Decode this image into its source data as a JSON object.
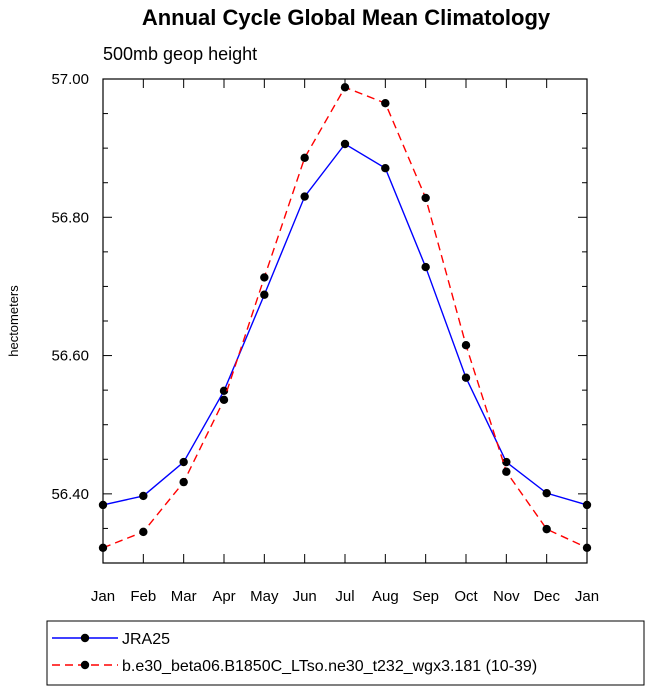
{
  "chart_data": {
    "type": "line",
    "title": "Annual Cycle Global Mean Climatology",
    "subtitle": "500mb geop height",
    "xlabel": "",
    "ylabel": "hectometers",
    "categories": [
      "Jan",
      "Feb",
      "Mar",
      "Apr",
      "May",
      "Jun",
      "Jul",
      "Aug",
      "Sep",
      "Oct",
      "Nov",
      "Dec",
      "Jan"
    ],
    "ylim": [
      56.3,
      57.0
    ],
    "yticks": [
      "56.40",
      "56.60",
      "56.80",
      "57.00"
    ],
    "series": [
      {
        "name": "JRA25",
        "color": "#0000ff",
        "line_style": "solid",
        "values": [
          56.384,
          56.397,
          56.446,
          56.549,
          56.688,
          56.83,
          56.906,
          56.871,
          56.728,
          56.568,
          56.446,
          56.401,
          56.384
        ]
      },
      {
        "name": "b.e30_beta06.B1850C_LTso.ne30_t232_wgx3.181 (10-39)",
        "color": "#ff0000",
        "line_style": "dashed",
        "values": [
          56.322,
          56.345,
          56.417,
          56.536,
          56.713,
          56.886,
          56.988,
          56.965,
          56.828,
          56.615,
          56.432,
          56.349,
          56.322
        ]
      }
    ],
    "grid": false,
    "legend_position": "bottom"
  }
}
